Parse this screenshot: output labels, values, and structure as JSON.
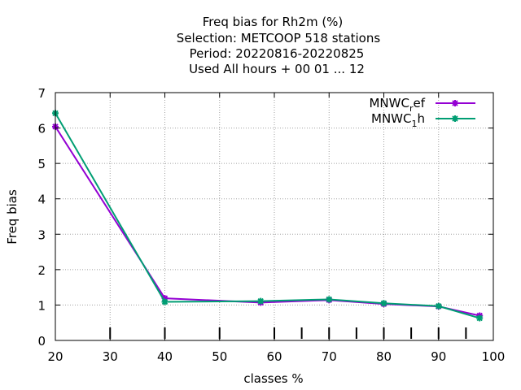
{
  "chart_data": {
    "type": "line",
    "title_lines": [
      "Freq bias  for Rh2m (%)",
      "Selection: METCOOP    518 stations",
      "Period: 20220816-20220825",
      "Used  All hours  + 00 01 ... 12"
    ],
    "xlabel": "classes %",
    "ylabel": "Freq bias",
    "xlim": [
      20,
      100
    ],
    "ylim": [
      0,
      7
    ],
    "xticks": [
      "20",
      "30",
      "40",
      "50",
      "60",
      "70",
      "80",
      "90",
      "100"
    ],
    "yticks": [
      "0",
      "1",
      "2",
      "3",
      "4",
      "5",
      "6",
      "7"
    ],
    "grid": true,
    "legend_position": "top-right",
    "class_marks": [
      30,
      40,
      50,
      60,
      65,
      70,
      75,
      80,
      85,
      90,
      95
    ],
    "series": [
      {
        "name_main": "MNWC",
        "name_sub": "r",
        "name_rest": "ef",
        "color": "#9400d3",
        "x": [
          20,
          40,
          57.5,
          70,
          80,
          90,
          97.5
        ],
        "y": [
          6.04,
          1.19,
          1.07,
          1.14,
          1.03,
          0.96,
          0.7
        ]
      },
      {
        "name_main": "MNWC",
        "name_sub": "1",
        "name_rest": "h",
        "color": "#009e73",
        "x": [
          20,
          40,
          57.5,
          70,
          80,
          90,
          97.5
        ],
        "y": [
          6.42,
          1.09,
          1.11,
          1.16,
          1.05,
          0.97,
          0.63
        ]
      }
    ]
  }
}
